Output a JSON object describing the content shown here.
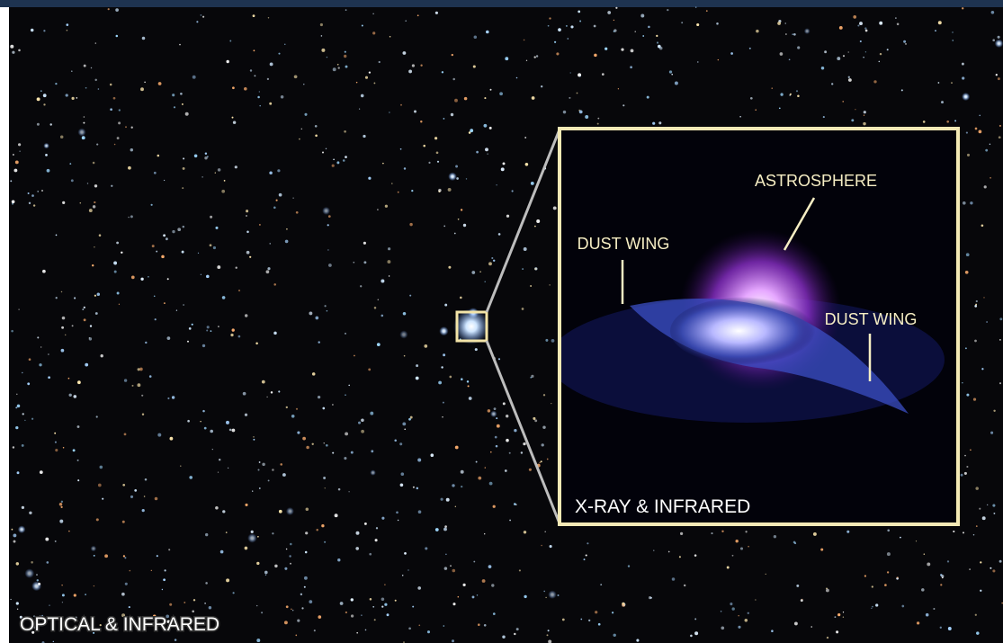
{
  "main_image": {
    "caption": "OPTICAL & INFRARED"
  },
  "inset": {
    "caption": "X-RAY & INFRARED",
    "annotations": [
      {
        "label": "ASTROSPHERE"
      },
      {
        "label": "DUST WING"
      },
      {
        "label": "DUST WING"
      }
    ]
  }
}
